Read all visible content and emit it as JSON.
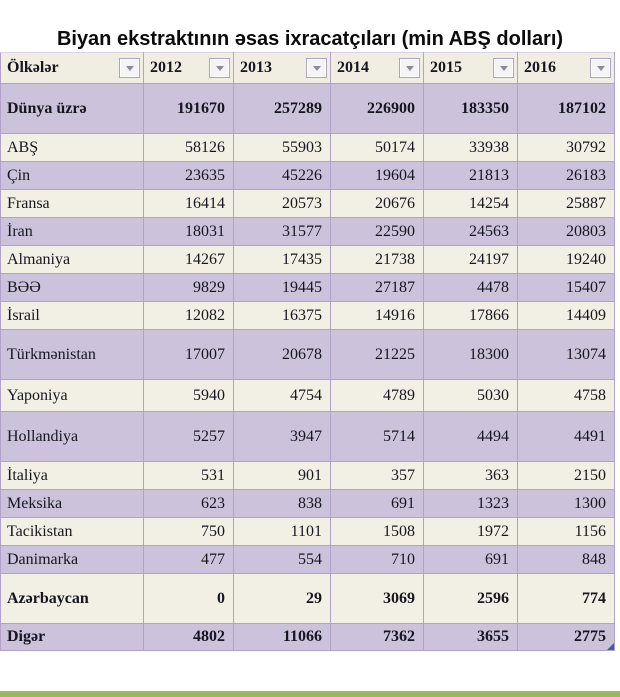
{
  "title": "Biyan ekstraktının əsas ixracatçıları (min ABŞ dolları)",
  "table": {
    "columns": [
      "Ölkələr",
      "2012",
      "2013",
      "2014",
      "2015",
      "2016"
    ],
    "rows": [
      {
        "label": "Dünya üzrə",
        "values": [
          "191670",
          "257289",
          "226900",
          "183350",
          "187102"
        ],
        "shade": "lavender",
        "bold": true,
        "size": "tall"
      },
      {
        "label": "ABŞ",
        "values": [
          "58126",
          "55903",
          "50174",
          "33938",
          "30792"
        ],
        "shade": "cream",
        "bold": false,
        "size": "normal"
      },
      {
        "label": "Çin",
        "values": [
          "23635",
          "45226",
          "19604",
          "21813",
          "26183"
        ],
        "shade": "lavender",
        "bold": false,
        "size": "normal"
      },
      {
        "label": "Fransa",
        "values": [
          "16414",
          "20573",
          "20676",
          "14254",
          "25887"
        ],
        "shade": "cream",
        "bold": false,
        "size": "normal"
      },
      {
        "label": "İran",
        "values": [
          "18031",
          "31577",
          "22590",
          "24563",
          "20803"
        ],
        "shade": "lavender",
        "bold": false,
        "size": "normal"
      },
      {
        "label": "Almaniya",
        "values": [
          "14267",
          "17435",
          "21738",
          "24197",
          "19240"
        ],
        "shade": "cream",
        "bold": false,
        "size": "normal"
      },
      {
        "label": "BƏƏ",
        "values": [
          "9829",
          "19445",
          "27187",
          "4478",
          "15407"
        ],
        "shade": "lavender",
        "bold": false,
        "size": "normal"
      },
      {
        "label": "İsrail",
        "values": [
          "12082",
          "16375",
          "14916",
          "17866",
          "14409"
        ],
        "shade": "cream",
        "bold": false,
        "size": "normal"
      },
      {
        "label": "Türkmənistan",
        "values": [
          "17007",
          "20678",
          "21225",
          "18300",
          "13074"
        ],
        "shade": "lavender",
        "bold": false,
        "size": "tall"
      },
      {
        "label": "Yaponiya",
        "values": [
          "5940",
          "4754",
          "4789",
          "5030",
          "4758"
        ],
        "shade": "cream",
        "bold": false,
        "size": "semi-tall"
      },
      {
        "label": "Hollandiya",
        "values": [
          "5257",
          "3947",
          "5714",
          "4494",
          "4491"
        ],
        "shade": "lavender",
        "bold": false,
        "size": "tall"
      },
      {
        "label": "İtaliya",
        "values": [
          "531",
          "901",
          "357",
          "363",
          "2150"
        ],
        "shade": "cream",
        "bold": false,
        "size": "normal"
      },
      {
        "label": "Meksika",
        "values": [
          "623",
          "838",
          "691",
          "1323",
          "1300"
        ],
        "shade": "lavender",
        "bold": false,
        "size": "normal"
      },
      {
        "label": "Tacikistan",
        "values": [
          "750",
          "1101",
          "1508",
          "1972",
          "1156"
        ],
        "shade": "cream",
        "bold": false,
        "size": "normal"
      },
      {
        "label": "Danimarka",
        "values": [
          "477",
          "554",
          "710",
          "691",
          "848"
        ],
        "shade": "lavender",
        "bold": false,
        "size": "normal"
      },
      {
        "label": "Azərbaycan",
        "values": [
          "0",
          "29",
          "3069",
          "2596",
          "774"
        ],
        "shade": "cream",
        "bold": true,
        "size": "tall"
      },
      {
        "label": "Digər",
        "values": [
          "4802",
          "11066",
          "7362",
          "3655",
          "2775"
        ],
        "shade": "lavender",
        "bold": true,
        "size": "short"
      }
    ]
  },
  "icons": {
    "filter_arrow": "dropdown-arrow"
  },
  "colors": {
    "row_lavender": "#ccc2dc",
    "row_cream": "#f2f0e4",
    "header_bg": "#f0eee2",
    "grid_border": "#b3a2c8",
    "bottom_bar_green": "#9bba58",
    "resize_handle_blue": "#3f5ea8"
  }
}
